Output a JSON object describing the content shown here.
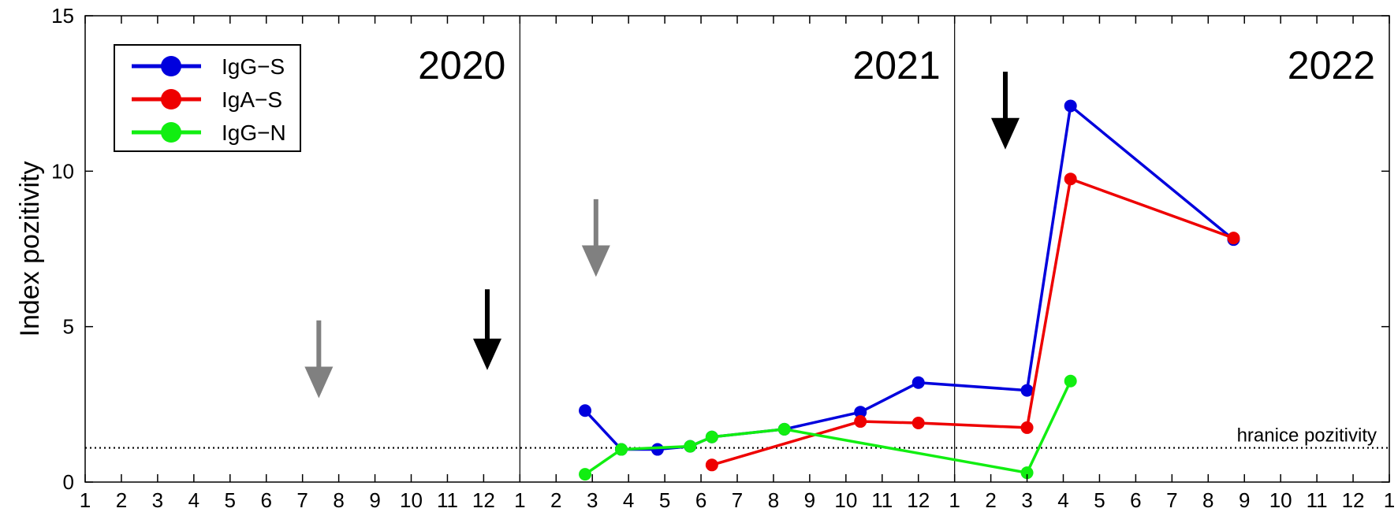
{
  "chart_data": {
    "type": "line",
    "ylabel": "Index pozitivity",
    "ylim": [
      0,
      15
    ],
    "yticks": [
      0,
      5,
      10,
      15
    ],
    "xlim": [
      1,
      37
    ],
    "x_tick_labels": [
      "1",
      "2",
      "3",
      "4",
      "5",
      "6",
      "7",
      "8",
      "9",
      "10",
      "11",
      "12",
      "1",
      "2",
      "3",
      "4",
      "5",
      "6",
      "7",
      "8",
      "9",
      "10",
      "11",
      "12",
      "1",
      "2",
      "3",
      "4",
      "5",
      "6",
      "7",
      "8",
      "9",
      "10",
      "11",
      "12",
      "1"
    ],
    "year_labels": [
      "2020",
      "2021",
      "2022"
    ],
    "year_dividers": [
      13,
      25
    ],
    "threshold": {
      "value": 1.1,
      "label": "hranice pozitivity",
      "style": "dotted"
    },
    "legend": {
      "position": "top-left"
    },
    "series": [
      {
        "name": "IgG−S",
        "color": "#0000dd",
        "x": [
          14.8,
          15.8,
          16.8,
          17.7,
          18.3,
          20.3,
          22.4,
          24.0,
          27.0,
          28.2,
          32.7
        ],
        "y": [
          2.3,
          1.05,
          1.05,
          1.15,
          1.45,
          1.7,
          2.25,
          3.2,
          2.95,
          12.1,
          7.8
        ]
      },
      {
        "name": "IgA−S",
        "color": "#ee0000",
        "x": [
          18.3,
          22.4,
          24.0,
          27.0,
          28.2,
          32.7
        ],
        "y": [
          0.55,
          1.95,
          1.9,
          1.75,
          9.75,
          7.85
        ]
      },
      {
        "name": "IgG−N",
        "color": "#11ee11",
        "x": [
          14.8,
          15.8,
          17.7,
          18.3,
          20.3,
          27.0,
          28.2
        ],
        "y": [
          0.25,
          1.05,
          1.15,
          1.45,
          1.7,
          0.3,
          3.25
        ]
      }
    ],
    "annotations": [
      {
        "type": "arrow",
        "color": "#808080",
        "x": 7.45,
        "y_from": 5.2,
        "y_to": 2.7
      },
      {
        "type": "arrow",
        "color": "#000000",
        "x": 12.1,
        "y_from": 6.2,
        "y_to": 3.6
      },
      {
        "type": "arrow",
        "color": "#808080",
        "x": 15.1,
        "y_from": 9.1,
        "y_to": 6.6
      },
      {
        "type": "arrow",
        "color": "#000000",
        "x": 26.4,
        "y_from": 13.2,
        "y_to": 10.7
      }
    ]
  }
}
